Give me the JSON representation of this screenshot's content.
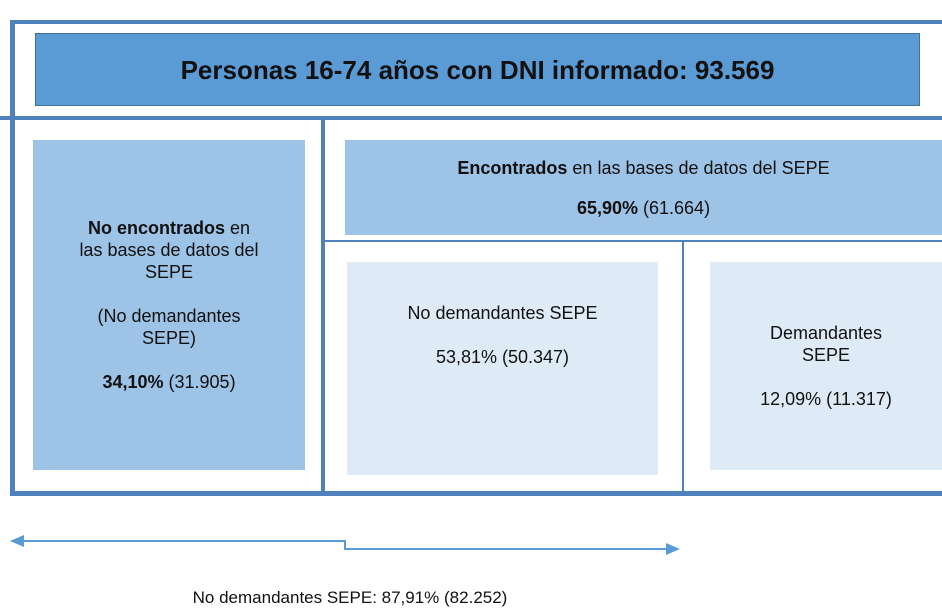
{
  "title": "Personas 16-74 años con DNI informado: 93.569",
  "not_found": {
    "label_bold": "No encontrados",
    "label_rest": "en las bases de datos del SEPE",
    "note": "(No demandantes SEPE)",
    "pct": "34,10%",
    "count": "(31.905)"
  },
  "found": {
    "label_bold": "Encontrados",
    "label_rest": "en las bases de datos del SEPE",
    "pct": "65,90%",
    "count": "(61.664)"
  },
  "found_non_applicants": {
    "label": "No demandantes SEPE",
    "figure": "53,81% (50.347)"
  },
  "found_applicants": {
    "label": "Demandantes SEPE",
    "figure": "12,09% (11.317)"
  },
  "total_non_applicants": "No demandantes SEPE: 87,91% (82.252)"
}
